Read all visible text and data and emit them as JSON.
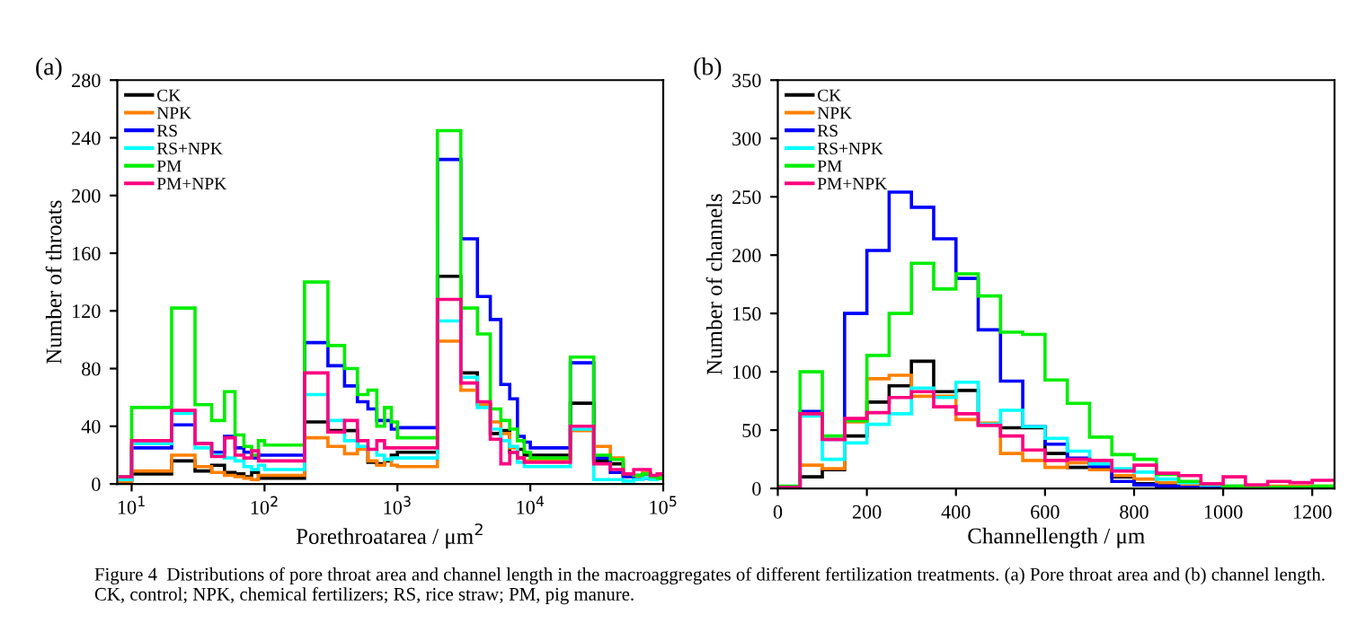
{
  "chart_data": [
    {
      "type": "histogram",
      "title": "(a)",
      "xlabel": "Porethroatarea / μm$^{2}$",
      "ylabel": "Number of throats",
      "log": "x",
      "legend": "top left",
      "xlim": [
        7.8,
        100000
      ],
      "xticks": [
        {
          "value": 10,
          "label": "10$^{1}$"
        },
        {
          "value": 100,
          "label": "10$^{2}$"
        },
        {
          "value": 1000,
          "label": "10$^{3}$"
        },
        {
          "value": 10000,
          "label": "10$^{4}$"
        },
        {
          "value": 100000,
          "label": "10$^{5}$"
        }
      ],
      "ylim": [
        0,
        280
      ],
      "yticks": [
        0,
        40,
        80,
        120,
        160,
        200,
        240,
        280
      ],
      "bins": [
        8,
        10,
        20,
        30,
        40,
        50,
        60,
        70,
        80,
        90,
        100,
        200,
        300,
        400,
        500,
        600,
        700,
        800,
        900,
        1000,
        2000,
        3000,
        4000,
        5000,
        6000,
        7000,
        8000,
        9000,
        10000,
        20000,
        30000,
        40000,
        50000,
        60000,
        70000,
        80000,
        90000,
        100000
      ],
      "series": [
        {
          "name": "CK",
          "color": "#000000",
          "values": [
            2,
            7,
            16,
            9,
            13,
            8,
            7,
            5,
            8,
            4,
            4,
            43,
            37,
            37,
            25,
            15,
            14,
            16,
            20,
            22,
            144,
            77,
            55,
            35,
            37,
            22,
            24,
            20,
            20,
            56,
            16,
            14,
            7,
            6,
            7,
            4,
            5
          ]
        },
        {
          "name": "NPK",
          "color": "#ff8000",
          "values": [
            2,
            9,
            20,
            12,
            8,
            6,
            5,
            4,
            3,
            6,
            6,
            32,
            26,
            21,
            24,
            16,
            13,
            17,
            13,
            12,
            99,
            65,
            55,
            43,
            35,
            25,
            18,
            16,
            16,
            37,
            26,
            18,
            5,
            4,
            8,
            5,
            5
          ]
        },
        {
          "name": "RS",
          "color": "#0000ff",
          "values": [
            3,
            25,
            41,
            28,
            22,
            33,
            25,
            22,
            18,
            20,
            20,
            98,
            82,
            68,
            57,
            52,
            44,
            44,
            38,
            39,
            225,
            170,
            130,
            114,
            69,
            59,
            33,
            29,
            25,
            84,
            18,
            8,
            5,
            3,
            4,
            3,
            4
          ]
        },
        {
          "name": "RS+NPK",
          "color": "#00ffff",
          "values": [
            3,
            28,
            49,
            25,
            20,
            18,
            16,
            12,
            10,
            13,
            10,
            62,
            44,
            30,
            26,
            24,
            20,
            17,
            18,
            18,
            113,
            74,
            53,
            38,
            30,
            26,
            15,
            12,
            12,
            38,
            3,
            3,
            2,
            3,
            4,
            3,
            4
          ]
        },
        {
          "name": "PM",
          "color": "#00ee00",
          "values": [
            5,
            53,
            122,
            55,
            44,
            64,
            34,
            26,
            20,
            30,
            27,
            140,
            96,
            80,
            62,
            65,
            40,
            53,
            43,
            32,
            245,
            122,
            104,
            52,
            44,
            38,
            30,
            22,
            18,
            88,
            20,
            17,
            7,
            6,
            7,
            5,
            4
          ]
        },
        {
          "name": "PM+NPK",
          "color": "#ff0080",
          "values": [
            5,
            30,
            51,
            28,
            19,
            32,
            20,
            18,
            23,
            16,
            16,
            77,
            36,
            44,
            30,
            24,
            30,
            25,
            25,
            25,
            128,
            70,
            57,
            31,
            14,
            22,
            18,
            15,
            15,
            40,
            14,
            10,
            7,
            10,
            10,
            6,
            7
          ]
        }
      ],
      "annotations": [
        "Figure 4  Distributions of pore throat area and channel length in the macroaggregates of different fertilization treatments. (a) Pore throat area and (b) channel length. CK, control; NPK, chemical fertilizers; RS, rice straw; PM, pig manure."
      ]
    },
    {
      "type": "histogram",
      "title": "(b)",
      "xlabel": "Channellength / μm",
      "ylabel": "Number of channels",
      "legend": "top left",
      "xlim": [
        0,
        1250
      ],
      "xticks": [
        0,
        200,
        400,
        600,
        800,
        1000,
        1200
      ],
      "ylim": [
        0,
        350
      ],
      "yticks": [
        0,
        50,
        100,
        150,
        200,
        250,
        300,
        350
      ],
      "bins": [
        0,
        50,
        100,
        150,
        200,
        250,
        300,
        350,
        400,
        450,
        500,
        550,
        600,
        650,
        700,
        750,
        800,
        850,
        900,
        950,
        1000,
        1050,
        1100,
        1150,
        1200,
        1250
      ],
      "series": [
        {
          "name": "CK",
          "color": "#000000",
          "values": [
            1,
            10,
            16,
            45,
            74,
            88,
            109,
            83,
            84,
            55,
            52,
            52,
            30,
            18,
            18,
            10,
            4,
            3,
            2,
            1,
            1,
            1,
            1,
            1,
            1
          ]
        },
        {
          "name": "NPK",
          "color": "#ff8000",
          "values": [
            1,
            20,
            17,
            57,
            94,
            97,
            79,
            79,
            59,
            56,
            30,
            24,
            18,
            22,
            16,
            11,
            8,
            5,
            3,
            2,
            2,
            1,
            2,
            2,
            2
          ]
        },
        {
          "name": "RS",
          "color": "#0000ff",
          "values": [
            1,
            66,
            42,
            150,
            204,
            254,
            241,
            214,
            180,
            136,
            92,
            53,
            38,
            26,
            19,
            6,
            3,
            2,
            1,
            1,
            0,
            0,
            0,
            0,
            0
          ]
        },
        {
          "name": "RS+NPK",
          "color": "#00ffff",
          "values": [
            1,
            62,
            25,
            39,
            55,
            64,
            86,
            78,
            91,
            55,
            67,
            53,
            43,
            32,
            21,
            17,
            14,
            8,
            5,
            3,
            2,
            1,
            1,
            1,
            1
          ]
        },
        {
          "name": "PM",
          "color": "#00ee00",
          "values": [
            2,
            100,
            45,
            58,
            114,
            150,
            193,
            171,
            184,
            165,
            134,
            132,
            93,
            73,
            44,
            29,
            25,
            12,
            6,
            4,
            2,
            1,
            1,
            1,
            2
          ]
        },
        {
          "name": "PM+NPK",
          "color": "#ff0080",
          "values": [
            1,
            64,
            42,
            60,
            65,
            78,
            83,
            70,
            64,
            54,
            45,
            33,
            24,
            25,
            24,
            15,
            20,
            13,
            11,
            4,
            10,
            3,
            6,
            5,
            7
          ]
        }
      ]
    }
  ]
}
